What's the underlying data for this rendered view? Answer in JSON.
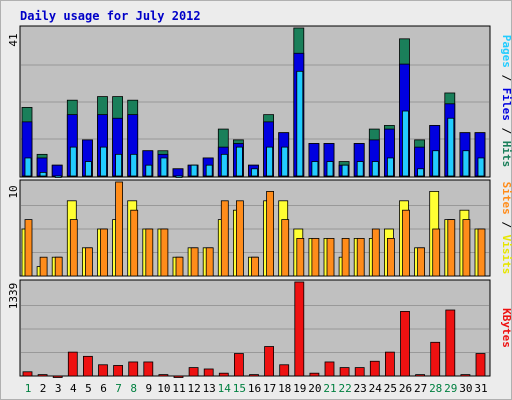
{
  "title": "Daily usage for July 2012",
  "colors": {
    "background": "#ececec",
    "plot_bg": "#c0c0c0",
    "hits": "#1a7f5a",
    "files": "#0000e0",
    "pages": "#22ccff",
    "visits": "#ffff33",
    "sites": "#ff8c1a",
    "kbytes": "#ee1111",
    "title": "#0000c8",
    "grid": "#999999",
    "weekend": "#008040"
  },
  "right_labels": {
    "top": {
      "pages": "Pages",
      "sep1": " / ",
      "files": "Files",
      "sep2": " / ",
      "hits": "Hits"
    },
    "middle": {
      "sites": "Sites",
      "sep": " / ",
      "visits": "Visits"
    },
    "bottom": {
      "kbytes": "KBytes"
    }
  },
  "chart_data": [
    {
      "type": "bar",
      "panel": "top",
      "ylabel_max": "41",
      "ylim": [
        0,
        41
      ],
      "categories": [
        "1",
        "2",
        "3",
        "4",
        "5",
        "6",
        "7",
        "8",
        "9",
        "10",
        "11",
        "12",
        "13",
        "14",
        "15",
        "16",
        "17",
        "18",
        "19",
        "20",
        "21",
        "22",
        "23",
        "24",
        "25",
        "26",
        "27",
        "28",
        "29",
        "30",
        "31"
      ],
      "weekend_days": [
        "1",
        "7",
        "8",
        "14",
        "15",
        "21",
        "22",
        "28",
        "29"
      ],
      "series": [
        {
          "name": "Hits",
          "values": [
            19,
            6,
            3,
            21,
            10,
            22,
            22,
            21,
            7,
            7,
            2,
            3,
            5,
            13,
            10,
            3,
            17,
            12,
            41,
            9,
            9,
            4,
            9,
            13,
            14,
            38,
            10,
            14,
            23,
            12,
            12
          ]
        },
        {
          "name": "Files",
          "values": [
            15,
            5,
            3,
            17,
            10,
            17,
            16,
            17,
            7,
            6,
            2,
            3,
            5,
            8,
            9,
            3,
            15,
            12,
            34,
            9,
            9,
            3,
            9,
            10,
            13,
            31,
            8,
            14,
            20,
            12,
            12
          ]
        },
        {
          "name": "Pages",
          "values": [
            5,
            1,
            0,
            8,
            4,
            8,
            6,
            6,
            3,
            5,
            0,
            3,
            3,
            6,
            8,
            2,
            8,
            8,
            29,
            4,
            4,
            3,
            4,
            4,
            5,
            18,
            2,
            7,
            16,
            7,
            5
          ]
        }
      ]
    },
    {
      "type": "bar",
      "panel": "middle",
      "ylabel_max": "10",
      "ylim": [
        0,
        10
      ],
      "categories": [
        "1",
        "2",
        "3",
        "4",
        "5",
        "6",
        "7",
        "8",
        "9",
        "10",
        "11",
        "12",
        "13",
        "14",
        "15",
        "16",
        "17",
        "18",
        "19",
        "20",
        "21",
        "22",
        "23",
        "24",
        "25",
        "26",
        "27",
        "28",
        "29",
        "30",
        "31"
      ],
      "series": [
        {
          "name": "Visits",
          "values": [
            5,
            1,
            2,
            8,
            3,
            5,
            6,
            8,
            5,
            5,
            2,
            3,
            3,
            6,
            7,
            2,
            8,
            8,
            5,
            4,
            4,
            2,
            4,
            4,
            5,
            8,
            3,
            9,
            6,
            7,
            5
          ]
        },
        {
          "name": "Sites",
          "values": [
            6,
            2,
            2,
            6,
            3,
            5,
            10,
            7,
            5,
            5,
            2,
            3,
            3,
            8,
            8,
            2,
            9,
            6,
            4,
            4,
            4,
            4,
            4,
            5,
            4,
            7,
            3,
            5,
            6,
            6,
            5
          ]
        }
      ]
    },
    {
      "type": "bar",
      "panel": "bottom",
      "ylabel_max": "1339",
      "ylim": [
        0,
        1339
      ],
      "categories": [
        "1",
        "2",
        "3",
        "4",
        "5",
        "6",
        "7",
        "8",
        "9",
        "10",
        "11",
        "12",
        "13",
        "14",
        "15",
        "16",
        "17",
        "18",
        "19",
        "20",
        "21",
        "22",
        "23",
        "24",
        "25",
        "26",
        "27",
        "28",
        "29",
        "30",
        "31"
      ],
      "series": [
        {
          "name": "KBytes",
          "values": [
            60,
            20,
            0,
            340,
            280,
            160,
            150,
            200,
            200,
            20,
            0,
            120,
            100,
            40,
            320,
            20,
            420,
            160,
            1339,
            40,
            200,
            120,
            120,
            210,
            340,
            920,
            20,
            480,
            940,
            20,
            320
          ]
        }
      ]
    }
  ]
}
